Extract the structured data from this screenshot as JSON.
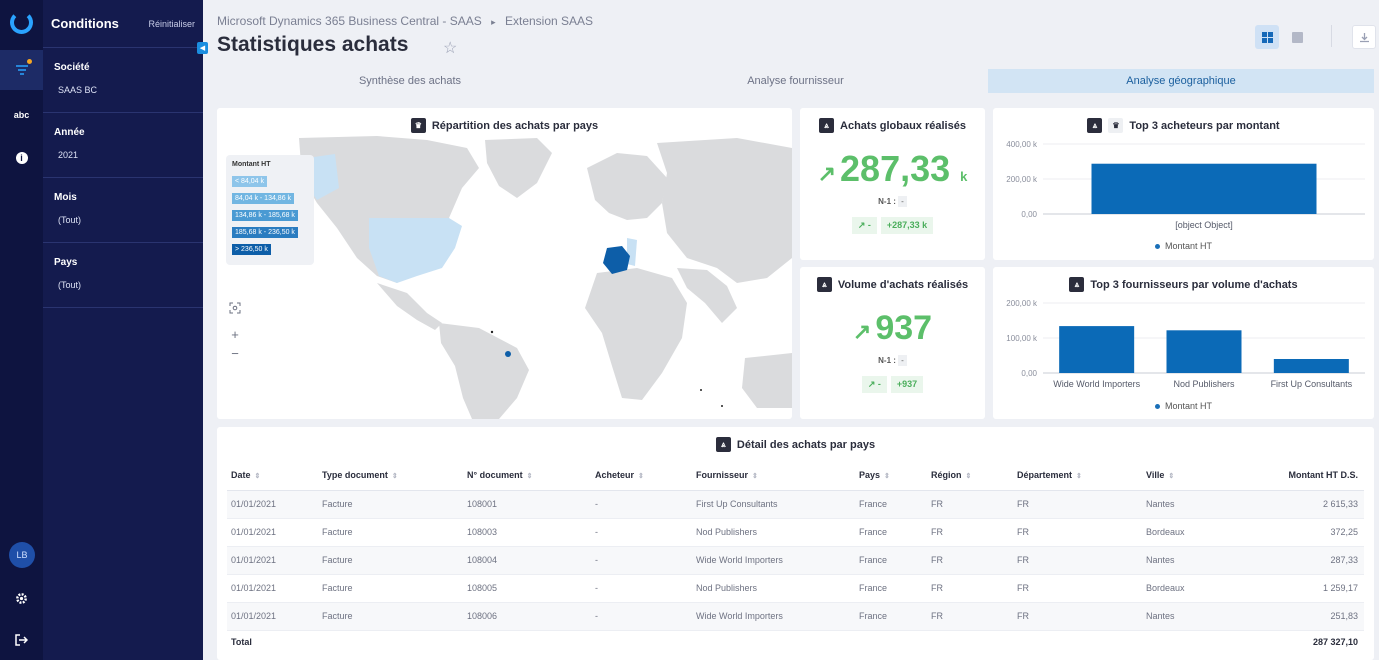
{
  "rail": {
    "items": [
      {
        "icon": "filter-icon"
      },
      {
        "icon": "abc-icon",
        "label": "abc"
      },
      {
        "icon": "info-icon",
        "label": "i"
      }
    ],
    "avatar": "LB"
  },
  "conditions": {
    "title": "Conditions",
    "reset": "Réinitialiser",
    "filters": [
      {
        "label": "Société",
        "value": "SAAS BC"
      },
      {
        "label": "Année",
        "value": "2021"
      },
      {
        "label": "Mois",
        "value": "(Tout)"
      },
      {
        "label": "Pays",
        "value": "(Tout)"
      }
    ]
  },
  "header": {
    "breadcrumb": [
      "Microsoft Dynamics 365 Business Central - SAAS",
      "Extension SAAS"
    ],
    "breadcrumb_sep": "▸",
    "title": "Statistiques achats"
  },
  "tabs": [
    {
      "label": "Synthèse des achats",
      "active": false
    },
    {
      "label": "Analyse fournisseur",
      "active": false
    },
    {
      "label": "Analyse géographique",
      "active": true
    }
  ],
  "map_card": {
    "title": "Répartition des achats par pays",
    "legend_title": "Montant HT",
    "legend": [
      {
        "label": "< 84,04 k",
        "color": "#8ec5ea"
      },
      {
        "label": "84,04 k - 134,86 k",
        "color": "#72b6e2"
      },
      {
        "label": "134,86 k - 185,68 k",
        "color": "#4a9ad3"
      },
      {
        "label": "185,68 k - 236,50 k",
        "color": "#2a7cc0"
      },
      {
        "label": "> 236,50 k",
        "color": "#0d5ea8"
      }
    ],
    "zoom_in": "+",
    "zoom_out": "−"
  },
  "kpi_global": {
    "title": "Achats globaux réalisés",
    "arrow": "↗",
    "value": "287,33",
    "unit": "k",
    "n1_label": "N-1 :",
    "n1_value": "-",
    "delta_arrow": "↗ -",
    "delta_value": "+287,33 k"
  },
  "kpi_volume": {
    "title": "Volume d'achats réalisés",
    "arrow": "↗",
    "value": "937",
    "n1_label": "N-1 :",
    "n1_value": "-",
    "delta_arrow": "↗ -",
    "delta_value": "+937"
  },
  "chart_data": [
    {
      "type": "bar",
      "title": "Top 3 acheteurs par montant",
      "categories": [
        "[object Object]"
      ],
      "series": [
        {
          "name": "Montant HT",
          "values": [
            287.33
          ]
        }
      ],
      "yticks": [
        "0,00",
        "200,00 k",
        "400,00 k"
      ],
      "ylim": [
        0,
        400
      ],
      "legend": "bottom",
      "color": "#0b6ab7"
    },
    {
      "type": "bar",
      "title": "Top 3 fournisseurs par volume d'achats",
      "categories": [
        "Wide World Importers",
        "Nod Publishers",
        "First Up Consultants"
      ],
      "series": [
        {
          "name": "Montant HT",
          "values": [
            134,
            122,
            40
          ]
        }
      ],
      "yticks": [
        "0,00",
        "100,00 k",
        "200,00 k"
      ],
      "ylim": [
        0,
        200
      ],
      "legend": "bottom",
      "color": "#0b6ab7"
    }
  ],
  "table": {
    "title": "Détail des achats par pays",
    "columns": [
      "Date",
      "Type document",
      "N° document",
      "Acheteur",
      "Fournisseur",
      "Pays",
      "Région",
      "Département",
      "Ville",
      "Montant HT D.S."
    ],
    "rows": [
      [
        "01/01/2021",
        "Facture",
        "108001",
        "-",
        "First Up Consultants",
        "France",
        "FR",
        "FR",
        "Nantes",
        "2 615,33"
      ],
      [
        "01/01/2021",
        "Facture",
        "108003",
        "-",
        "Nod Publishers",
        "France",
        "FR",
        "FR",
        "Bordeaux",
        "372,25"
      ],
      [
        "01/01/2021",
        "Facture",
        "108004",
        "-",
        "Wide World Importers",
        "France",
        "FR",
        "FR",
        "Nantes",
        "287,33"
      ],
      [
        "01/01/2021",
        "Facture",
        "108005",
        "-",
        "Nod Publishers",
        "France",
        "FR",
        "FR",
        "Bordeaux",
        "1 259,17"
      ],
      [
        "01/01/2021",
        "Facture",
        "108006",
        "-",
        "Wide World Importers",
        "France",
        "FR",
        "FR",
        "Nantes",
        "251,83"
      ]
    ],
    "total_label": "Total",
    "total_value": "287 327,10"
  }
}
